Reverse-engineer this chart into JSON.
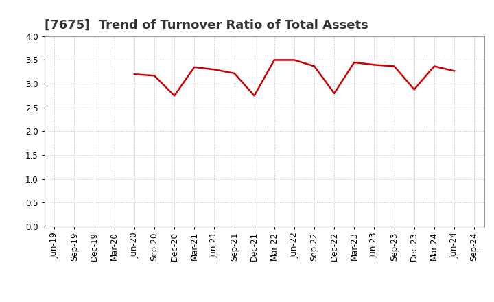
{
  "title": "[7675]  Trend of Turnover Ratio of Total Assets",
  "ylim": [
    0.0,
    4.0
  ],
  "yticks": [
    0.0,
    0.5,
    1.0,
    1.5,
    2.0,
    2.5,
    3.0,
    3.5,
    4.0
  ],
  "x_labels": [
    "Jun-19",
    "Sep-19",
    "Dec-19",
    "Mar-20",
    "Jun-20",
    "Sep-20",
    "Dec-20",
    "Mar-21",
    "Jun-21",
    "Sep-21",
    "Dec-21",
    "Mar-22",
    "Jun-22",
    "Sep-22",
    "Dec-22",
    "Mar-23",
    "Jun-23",
    "Sep-23",
    "Dec-23",
    "Mar-24",
    "Jun-24",
    "Sep-24"
  ],
  "data_x_indices": [
    4,
    5,
    6,
    7,
    8,
    9,
    10,
    11,
    12,
    13,
    14,
    15,
    16,
    17,
    18,
    19,
    20
  ],
  "data_values": [
    3.2,
    3.17,
    2.75,
    3.35,
    3.3,
    3.22,
    2.75,
    3.5,
    3.5,
    3.37,
    2.8,
    3.45,
    3.4,
    3.37,
    2.88,
    3.37,
    3.27
  ],
  "line_color": "#cc0000",
  "line_width": 1.8,
  "grid_color": "#bbbbbb",
  "bg_color": "#ffffff",
  "border_color": "#999999",
  "title_fontsize": 13,
  "tick_fontsize": 8.5,
  "title_color": "#333333"
}
